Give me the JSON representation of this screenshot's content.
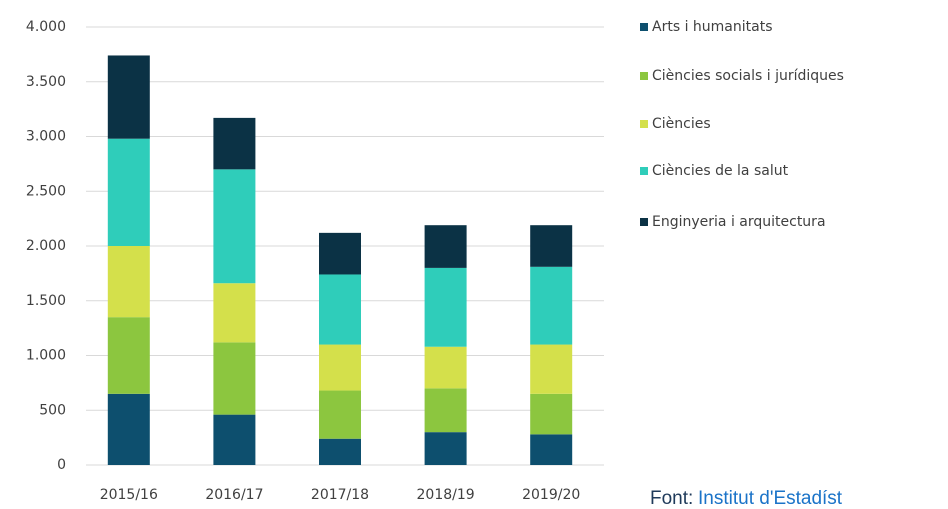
{
  "chart_data": {
    "type": "stacked_bar",
    "categories": [
      "2015/16",
      "2016/17",
      "2017/18",
      "2018/19",
      "2019/20"
    ],
    "series": [
      {
        "name": "Arts i humanitats",
        "color": "#0d4f6e",
        "values": [
          650,
          460,
          240,
          300,
          280
        ]
      },
      {
        "name": "Ciències socials i jurídiques",
        "color": "#8cc63f",
        "values": [
          700,
          660,
          440,
          400,
          370
        ]
      },
      {
        "name": "Ciències",
        "color": "#d4e04b",
        "values": [
          650,
          540,
          420,
          380,
          450
        ]
      },
      {
        "name": "Ciències de la salut",
        "color": "#2fcdba",
        "values": [
          980,
          1040,
          640,
          720,
          710
        ]
      },
      {
        "name": "Enginyeria i arquitectura",
        "color": "#0b3245",
        "values": [
          760,
          470,
          380,
          390,
          380
        ]
      }
    ],
    "ylim": [
      0,
      4000
    ],
    "yticks": [
      0,
      500,
      {
        "value": 1000,
        "label": "1.000"
      },
      {
        "value": 1500,
        "label": "1.500"
      },
      {
        "value": 2000,
        "label": "2.000"
      },
      {
        "value": 2500,
        "label": "2.500"
      },
      {
        "value": 3000,
        "label": "3.000"
      },
      {
        "value": 3500,
        "label": "3.500"
      },
      {
        "value": 4000,
        "label": "4.000"
      }
    ],
    "grid": true,
    "legend": "right",
    "source_label": "Font:",
    "source": "Institut d'Estadíst"
  }
}
